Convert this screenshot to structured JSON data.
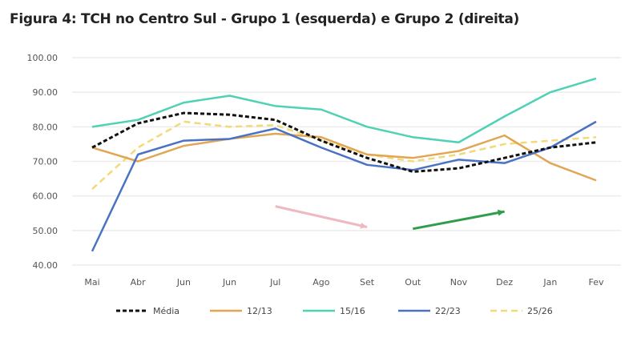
{
  "chart_data": {
    "type": "line",
    "title": "Figura 4:  TCH no Centro Sul - Grupo 1 (esquerda) e Grupo 2 (direita)",
    "xlabel": "",
    "ylabel": "",
    "categories": [
      "Mai",
      "Abr",
      "Jun",
      "Jun",
      "Jul",
      "Ago",
      "Set",
      "Out",
      "Nov",
      "Dez",
      "Jan",
      "Fev"
    ],
    "ylim": [
      40,
      100
    ],
    "yticks": [
      "40.00",
      "50.00",
      "60.00",
      "70.00",
      "80.00",
      "90.00",
      "100.00"
    ],
    "grid": true,
    "legend": "bottom",
    "series": [
      {
        "name": "Média",
        "color": "#111111",
        "dashed": true,
        "values": [
          74,
          81,
          84,
          83.5,
          82,
          76,
          71,
          67,
          68,
          71,
          74,
          75.5
        ]
      },
      {
        "name": "12/13",
        "color": "#e0a653",
        "dashed": false,
        "values": [
          74,
          70,
          74.5,
          76.5,
          78,
          77,
          72,
          71,
          73,
          77.5,
          69.5,
          64.5
        ]
      },
      {
        "name": "15/16",
        "color": "#4fd1b5",
        "dashed": false,
        "values": [
          80,
          82,
          87,
          89,
          86,
          85,
          80,
          77,
          75.5,
          83,
          90,
          94
        ]
      },
      {
        "name": "22/23",
        "color": "#4a72c4",
        "dashed": false,
        "values": [
          44,
          72,
          76,
          76.5,
          79.5,
          74,
          69,
          67.5,
          70.5,
          69.5,
          74,
          81.5
        ]
      },
      {
        "name": "25/26",
        "color": "#f2d97a",
        "dashed": true,
        "values": [
          62,
          74,
          81.5,
          80,
          80.5,
          76,
          72,
          70,
          72,
          75,
          76,
          77
        ]
      }
    ],
    "annotations": [
      {
        "type": "arrow",
        "color": "#f0b8c0",
        "from": [
          "Jul",
          57
        ],
        "to": [
          "Set",
          51
        ]
      },
      {
        "type": "arrow",
        "color": "#2e9e4a",
        "from": [
          "Out",
          50.5
        ],
        "to": [
          "Dez",
          55.5
        ]
      }
    ]
  }
}
